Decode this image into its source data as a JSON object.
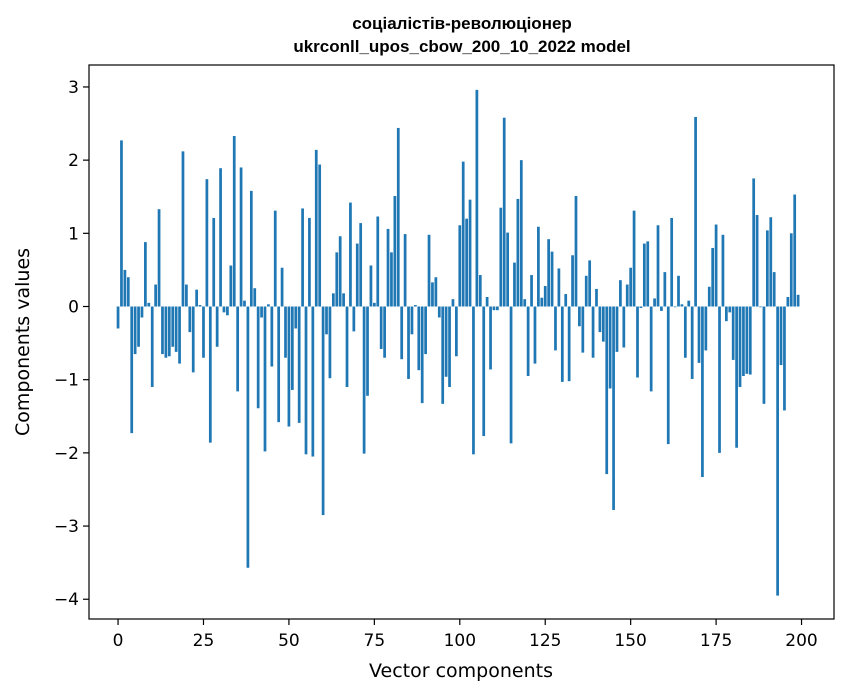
{
  "chart_data": {
    "type": "bar",
    "title_line1": "соціалістів-революціонер",
    "title_line2": "ukrconll_upos_cbow_200_10_2022 model",
    "xlabel": "Vector components",
    "ylabel": "Components values",
    "xlim": [
      -8.5,
      209.5
    ],
    "ylim": [
      -4.27,
      3.3
    ],
    "x_ticks": [
      0,
      25,
      50,
      75,
      100,
      125,
      150,
      175,
      200
    ],
    "x_tick_labels": [
      "0",
      "25",
      "50",
      "75",
      "100",
      "125",
      "150",
      "175",
      "200"
    ],
    "y_ticks": [
      -4,
      -3,
      -2,
      -1,
      0,
      1,
      2,
      3
    ],
    "y_tick_labels": [
      "−4",
      "−3",
      "−2",
      "−1",
      "0",
      "1",
      "2",
      "3"
    ],
    "bar_color": "#1f77b4",
    "x": [
      0,
      1,
      2,
      3,
      4,
      5,
      6,
      7,
      8,
      9,
      10,
      11,
      12,
      13,
      14,
      15,
      16,
      17,
      18,
      19,
      20,
      21,
      22,
      23,
      24,
      25,
      26,
      27,
      28,
      29,
      30,
      31,
      32,
      33,
      34,
      35,
      36,
      37,
      38,
      39,
      40,
      41,
      42,
      43,
      44,
      45,
      46,
      47,
      48,
      49,
      50,
      51,
      52,
      53,
      54,
      55,
      56,
      57,
      58,
      59,
      60,
      61,
      62,
      63,
      64,
      65,
      66,
      67,
      68,
      69,
      70,
      71,
      72,
      73,
      74,
      75,
      76,
      77,
      78,
      79,
      80,
      81,
      82,
      83,
      84,
      85,
      86,
      87,
      88,
      89,
      90,
      91,
      92,
      93,
      94,
      95,
      96,
      97,
      98,
      99,
      100,
      101,
      102,
      103,
      104,
      105,
      106,
      107,
      108,
      109,
      110,
      111,
      112,
      113,
      114,
      115,
      116,
      117,
      118,
      119,
      120,
      121,
      122,
      123,
      124,
      125,
      126,
      127,
      128,
      129,
      130,
      131,
      132,
      133,
      134,
      135,
      136,
      137,
      138,
      139,
      140,
      141,
      142,
      143,
      144,
      145,
      146,
      147,
      148,
      149,
      150,
      151,
      152,
      153,
      154,
      155,
      156,
      157,
      158,
      159,
      160,
      161,
      162,
      163,
      164,
      165,
      166,
      167,
      168,
      169,
      170,
      171,
      172,
      173,
      174,
      175,
      176,
      177,
      178,
      179,
      180,
      181,
      182,
      183,
      184,
      185,
      186,
      187,
      188,
      189,
      190,
      191,
      192,
      193,
      194,
      195,
      196,
      197,
      198,
      199
    ],
    "values": [
      -0.3,
      2.27,
      0.5,
      0.4,
      -1.73,
      -0.65,
      -0.55,
      -0.15,
      0.88,
      0.05,
      -1.1,
      0.3,
      1.33,
      -0.65,
      -0.7,
      -0.68,
      -0.55,
      -0.62,
      -0.78,
      2.12,
      0.3,
      -0.35,
      -0.9,
      0.23,
      0.02,
      -0.7,
      1.74,
      -1.86,
      1.21,
      -0.55,
      1.89,
      -0.08,
      -0.12,
      0.56,
      2.33,
      -1.16,
      1.9,
      0.08,
      -3.57,
      1.58,
      0.25,
      -1.39,
      -0.15,
      -1.98,
      0.03,
      -0.82,
      1.31,
      -1.58,
      0.53,
      -0.7,
      -1.64,
      -1.14,
      -0.3,
      -1.59,
      1.34,
      -2.02,
      1.21,
      -2.05,
      2.14,
      1.94,
      -2.85,
      -0.38,
      -0.98,
      0.18,
      0.74,
      0.96,
      0.18,
      -1.1,
      1.42,
      -0.34,
      0.86,
      1.14,
      -2.01,
      -1.22,
      0.56,
      0.05,
      1.23,
      -0.58,
      -0.7,
      1.06,
      0.74,
      1.51,
      2.44,
      -0.72,
      0.99,
      -0.99,
      -0.38,
      0.02,
      -0.87,
      -1.32,
      -0.65,
      0.98,
      0.33,
      0.4,
      -0.15,
      -1.33,
      -0.96,
      -1.1,
      0.1,
      -0.68,
      1.11,
      1.98,
      1.2,
      1.46,
      -2.02,
      2.96,
      0.43,
      -1.77,
      0.13,
      -0.86,
      -0.05,
      -0.05,
      1.35,
      2.58,
      1.01,
      -1.87,
      0.6,
      1.47,
      2.0,
      0.1,
      -0.95,
      0.43,
      -0.78,
      1.09,
      0.12,
      0.28,
      0.92,
      0.75,
      -0.6,
      0.52,
      -1.03,
      0.17,
      -1.02,
      0.7,
      1.51,
      -0.27,
      -0.63,
      0.42,
      0.63,
      -0.7,
      0.24,
      -0.35,
      -0.48,
      -2.29,
      -1.12,
      -2.78,
      -0.62,
      0.36,
      -0.56,
      0.3,
      0.53,
      1.31,
      -0.97,
      -0.02,
      0.86,
      0.89,
      -1.16,
      0.11,
      1.11,
      -0.06,
      0.47,
      -1.88,
      1.21,
      -0.01,
      0.42,
      0.03,
      -0.7,
      0.08,
      -0.99,
      2.59,
      -0.77,
      -2.33,
      -0.6,
      0.27,
      0.8,
      1.12,
      -2.0,
      0.98,
      -0.2,
      -0.08,
      -0.73,
      -1.93,
      -1.1,
      -0.95,
      -0.92,
      -0.93,
      1.75,
      1.25,
      -0.01,
      -1.33,
      1.04,
      1.22,
      0.47,
      -3.95,
      -0.8,
      -1.42,
      0.13,
      1.0,
      1.53,
      0.16
    ]
  }
}
